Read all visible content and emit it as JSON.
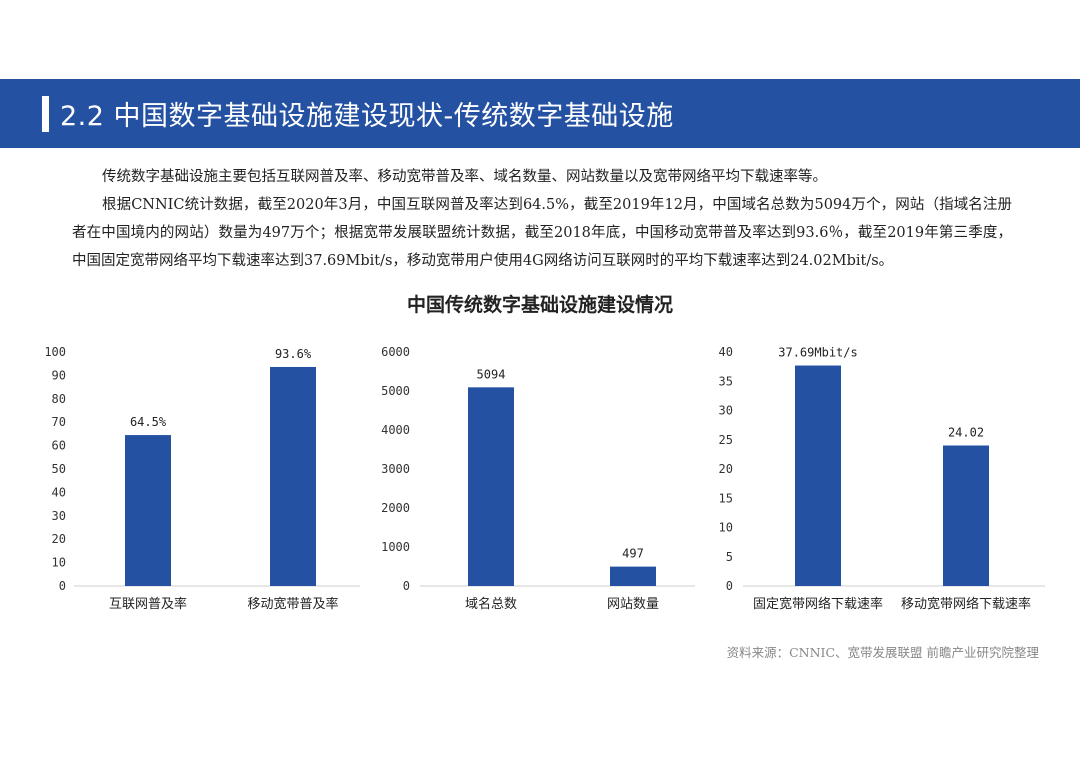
{
  "section": {
    "title": "2.2 中国数字基础设施建设现状-传统数字基础设施"
  },
  "intro": {
    "paragraph_1": "传统数字基础设施主要包括互联网普及率、移动宽带普及率、域名数量、网站数量以及宽带网络平均下载速率等。",
    "paragraph_2": "根据CNNIC统计数据，截至2020年3月，中国互联网普及率达到64.5%，截至2019年12月，中国域名总数为5094万个，网站（指域名注册者在中国境内的网站）数量为497万个；根据宽带发展联盟统计数据，截至2018年底，中国移动宽带普及率达到93.6％，截至2019年第三季度，中国固定宽带网络平均下载速率达到37.69Mbit/s，移动宽带用户使用4G网络访问互联网时的平均下载速率达到24.02Mbit/s。"
  },
  "chart_title": "中国传统数字基础设施建设情况",
  "source": "资料来源：CNNIC、宽带发展联盟 前瞻产业研究院整理",
  "colors": {
    "bar": "#2551a2",
    "banner": "#2551a2",
    "axis": "#cfcfcf"
  },
  "chart_data": [
    {
      "type": "bar",
      "categories": [
        "互联网普及率",
        "移动宽带普及率"
      ],
      "values": [
        64.5,
        93.6
      ],
      "data_labels": [
        "64.5%",
        "93.6%"
      ],
      "ylim": [
        0,
        100
      ],
      "yticks": [
        0,
        10,
        20,
        30,
        40,
        50,
        60,
        70,
        80,
        90,
        100
      ],
      "grid": false
    },
    {
      "type": "bar",
      "categories": [
        "域名总数",
        "网站数量"
      ],
      "values": [
        5094,
        497
      ],
      "data_labels": [
        "5094",
        "497"
      ],
      "ylim": [
        0,
        6000
      ],
      "yticks": [
        0,
        1000,
        2000,
        3000,
        4000,
        5000,
        6000
      ],
      "grid": false
    },
    {
      "type": "bar",
      "categories": [
        "固定宽带网络下载速率",
        "移动宽带网络下载速率"
      ],
      "values": [
        37.69,
        24.02
      ],
      "data_labels": [
        "37.69Mbit/s",
        "24.02"
      ],
      "ylim": [
        0,
        40
      ],
      "yticks": [
        0,
        5,
        10,
        15,
        20,
        25,
        30,
        35,
        40
      ],
      "grid": false
    }
  ]
}
